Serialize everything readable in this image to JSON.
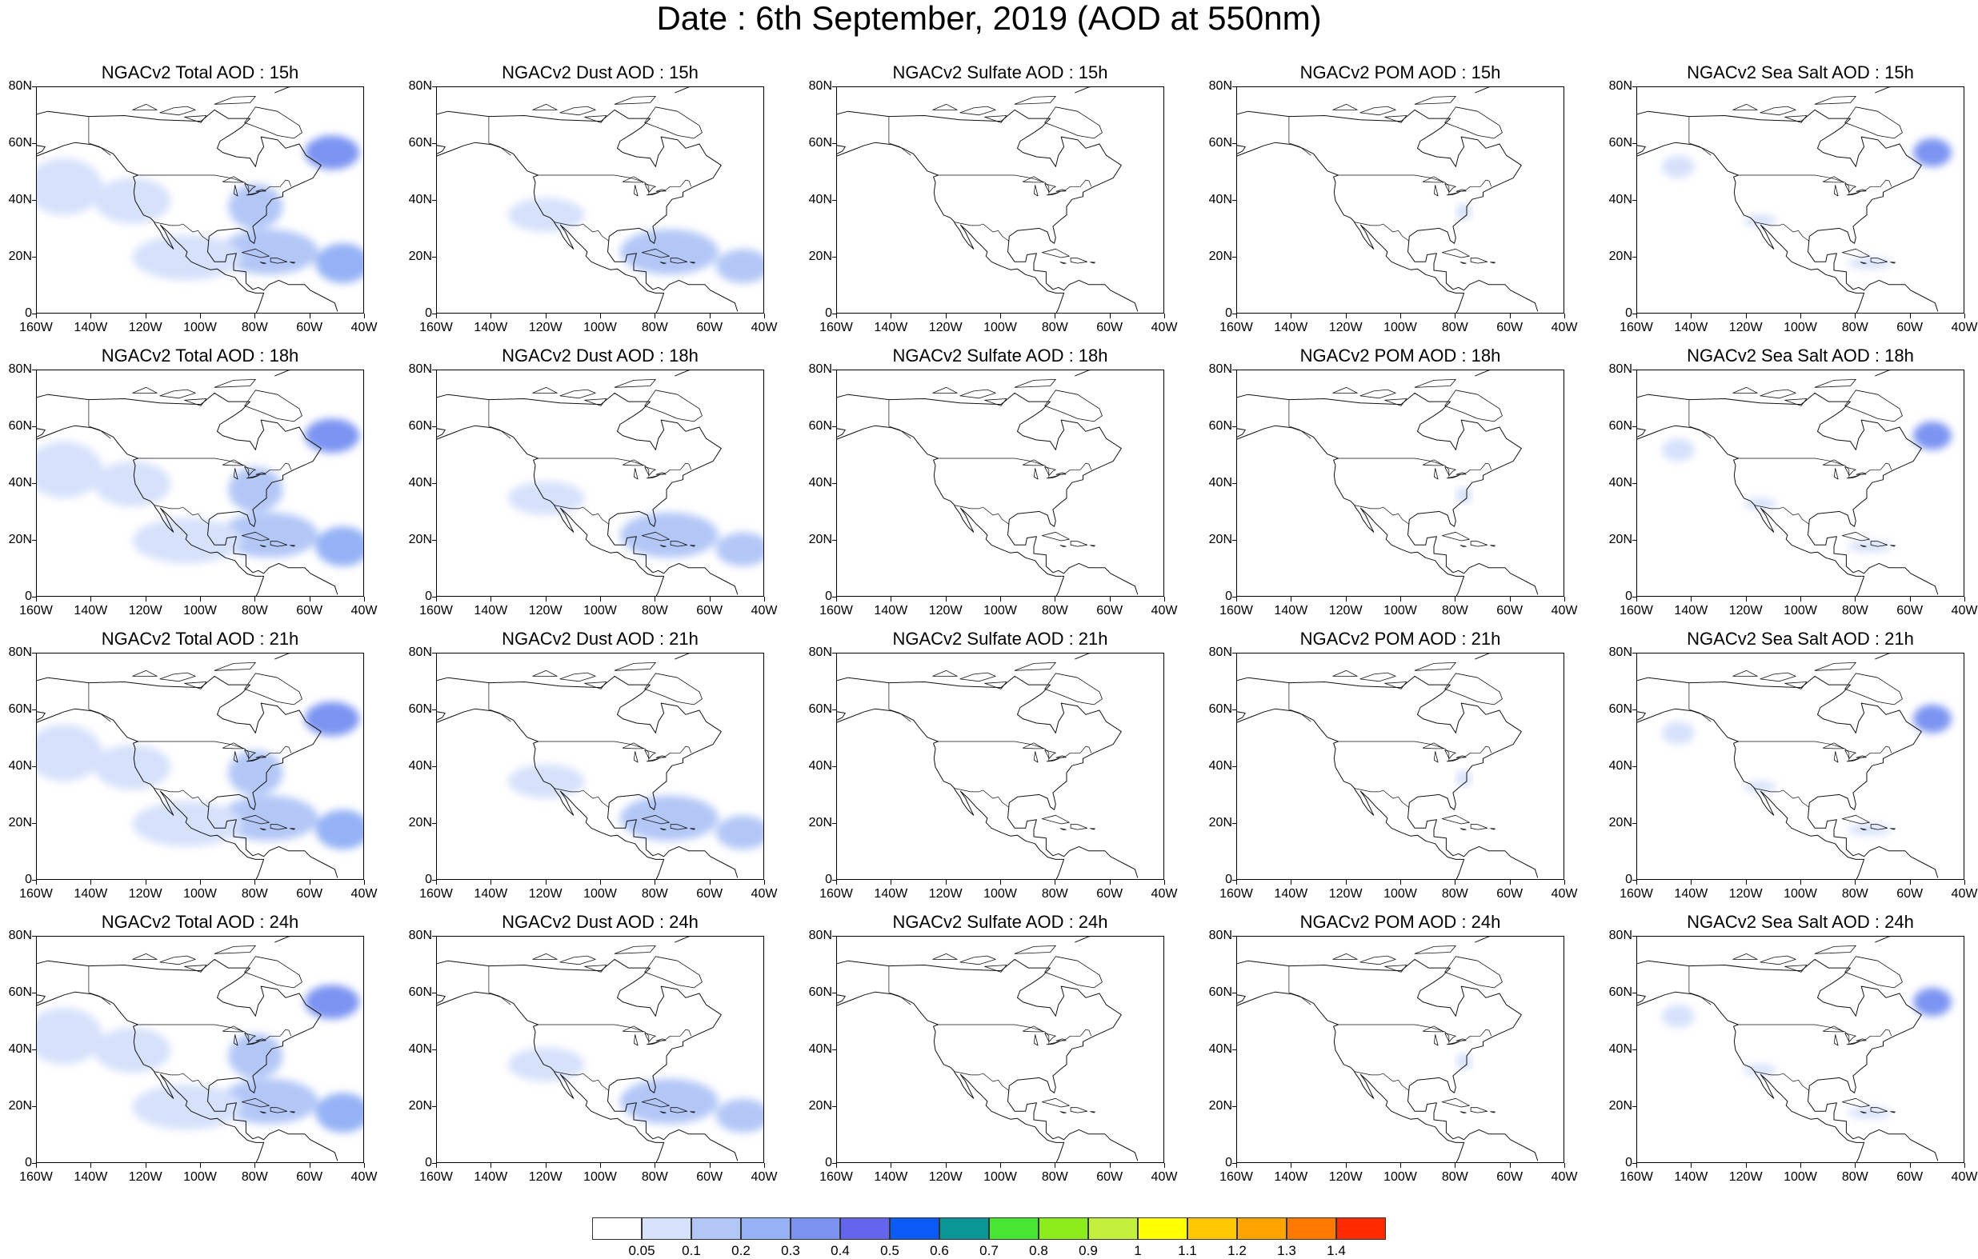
{
  "title": "Date : 6th September, 2019 (AOD at 550nm)",
  "panel_titles": [
    [
      "NGACv2 Total AOD : 15h",
      "NGACv2 Dust AOD : 15h",
      "NGACv2 Sulfate AOD : 15h",
      "NGACv2 POM AOD : 15h",
      "NGACv2 Sea Salt AOD : 15h"
    ],
    [
      "NGACv2 Total AOD : 18h",
      "NGACv2 Dust AOD : 18h",
      "NGACv2 Sulfate AOD : 18h",
      "NGACv2 POM AOD : 18h",
      "NGACv2 Sea Salt AOD : 18h"
    ],
    [
      "NGACv2 Total AOD : 21h",
      "NGACv2 Dust AOD : 21h",
      "NGACv2 Sulfate AOD : 21h",
      "NGACv2 POM AOD : 21h",
      "NGACv2 Sea Salt AOD : 21h"
    ],
    [
      "NGACv2 Total AOD : 24h",
      "NGACv2 Dust AOD : 24h",
      "NGACv2 Sulfate AOD : 24h",
      "NGACv2 POM AOD : 24h",
      "NGACv2 Sea Salt  AOD : 24h"
    ]
  ],
  "lat_labels": [
    "80N",
    "60N",
    "40N",
    "20N",
    "0"
  ],
  "lon_labels": [
    "160W",
    "140W",
    "120W",
    "100W",
    "80W",
    "60W",
    "40W"
  ],
  "map_extent": {
    "lon_min": -160,
    "lon_max": -40,
    "lat_min": 0,
    "lat_max": 80
  },
  "colorbar": {
    "colors": [
      "#ffffff",
      "#d6e1fb",
      "#b3c7f7",
      "#94b2f5",
      "#7b94f2",
      "#6366ec",
      "#0a5af5",
      "#0a9696",
      "#46e633",
      "#8ced1c",
      "#c3f03d",
      "#ffff00",
      "#ffc800",
      "#ffa500",
      "#ff7800",
      "#ff2a00"
    ],
    "labels": [
      "0.05",
      "0.1",
      "0.2",
      "0.3",
      "0.4",
      "0.5",
      "0.6",
      "0.7",
      "0.8",
      "0.9",
      "1",
      "1.1",
      "1.2",
      "1.3",
      "1.4"
    ]
  },
  "aerosol_patches": {
    "total": [
      {
        "lon": -150,
        "lat": 45,
        "rx": 14,
        "ry": 10,
        "level": 1
      },
      {
        "lon": -125,
        "lat": 40,
        "rx": 14,
        "ry": 8,
        "level": 1
      },
      {
        "lon": -80,
        "lat": 38,
        "rx": 10,
        "ry": 8,
        "level": 2
      },
      {
        "lon": -75,
        "lat": 22,
        "rx": 18,
        "ry": 8,
        "level": 2
      },
      {
        "lon": -52,
        "lat": 57,
        "rx": 10,
        "ry": 6,
        "level": 4
      },
      {
        "lon": -48,
        "lat": 18,
        "rx": 10,
        "ry": 7,
        "level": 3
      },
      {
        "lon": -105,
        "lat": 20,
        "rx": 20,
        "ry": 8,
        "level": 1
      }
    ],
    "dust": [
      {
        "lon": -120,
        "lat": 35,
        "rx": 14,
        "ry": 6,
        "level": 1
      },
      {
        "lon": -75,
        "lat": 22,
        "rx": 18,
        "ry": 8,
        "level": 2
      },
      {
        "lon": -48,
        "lat": 17,
        "rx": 10,
        "ry": 6,
        "level": 2
      }
    ],
    "sulfate": [],
    "pom": [
      {
        "lon": -77,
        "lat": 36,
        "rx": 3,
        "ry": 3,
        "level": 1
      }
    ],
    "seasalt": [
      {
        "lon": -52,
        "lat": 57,
        "rx": 7,
        "ry": 5,
        "level": 4
      },
      {
        "lon": -145,
        "lat": 52,
        "rx": 6,
        "ry": 4,
        "level": 1
      },
      {
        "lon": -115,
        "lat": 33,
        "rx": 6,
        "ry": 2,
        "level": 1
      },
      {
        "lon": -75,
        "lat": 18,
        "rx": 8,
        "ry": 2,
        "level": 1
      }
    ]
  }
}
